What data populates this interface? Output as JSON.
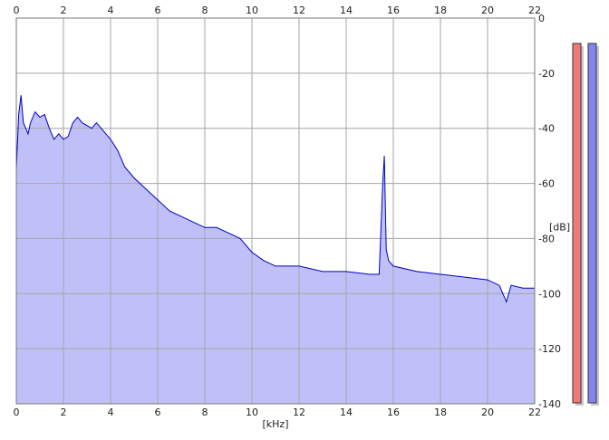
{
  "chart_data": {
    "type": "area",
    "x_unit_label": "[kHz]",
    "y_unit_label": "[dB]",
    "xlim": [
      0,
      22
    ],
    "ylim": [
      -140,
      0
    ],
    "x_ticks": [
      0,
      2,
      4,
      6,
      8,
      10,
      12,
      14,
      16,
      18,
      20,
      22
    ],
    "y_ticks": [
      0,
      -20,
      -40,
      -60,
      -80,
      -100,
      -120,
      -140
    ],
    "y_tick_labels": [
      "0",
      "-20",
      "-40",
      "-60",
      "-80",
      "-100",
      "-120",
      "-140"
    ],
    "grid": true,
    "series": [
      {
        "x": [
          0.0,
          0.1,
          0.2,
          0.3,
          0.4,
          0.5,
          0.6,
          0.8,
          1.0,
          1.2,
          1.4,
          1.6,
          1.8,
          2.0,
          2.2,
          2.4,
          2.6,
          2.8,
          3.0,
          3.2,
          3.4,
          3.6,
          3.8,
          4.0,
          4.3,
          4.6,
          5.0,
          5.5,
          6.0,
          6.5,
          7.0,
          7.5,
          8.0,
          8.5,
          9.0,
          9.5,
          10.0,
          10.5,
          11.0,
          12.0,
          13.0,
          14.0,
          15.0,
          15.4,
          15.55,
          15.62,
          15.7,
          15.8,
          16.0,
          17.0,
          18.0,
          19.0,
          20.0,
          20.5,
          20.8,
          21.0,
          21.5,
          22.0
        ],
        "values": [
          -55,
          -35,
          -28,
          -38,
          -40,
          -42,
          -38,
          -34,
          -36,
          -35,
          -40,
          -44,
          -42,
          -44,
          -43,
          -38,
          -36,
          -38,
          -39,
          -40,
          -38,
          -40,
          -42,
          -44,
          -48,
          -54,
          -58,
          -62,
          -66,
          -70,
          -72,
          -74,
          -76,
          -76,
          -78,
          -80,
          -85,
          -88,
          -90,
          -90,
          -92,
          -92,
          -93,
          -93,
          -60,
          -50,
          -84,
          -88,
          -90,
          -92,
          -93,
          -94,
          -95,
          -97,
          -103,
          -97,
          -98,
          -98
        ]
      }
    ],
    "colors": {
      "line": "#0000c0",
      "fill": "#c0c0f8",
      "grid": "#a6a6a6",
      "left_meter": "#f07a7a",
      "right_meter": "#8484f0"
    }
  }
}
